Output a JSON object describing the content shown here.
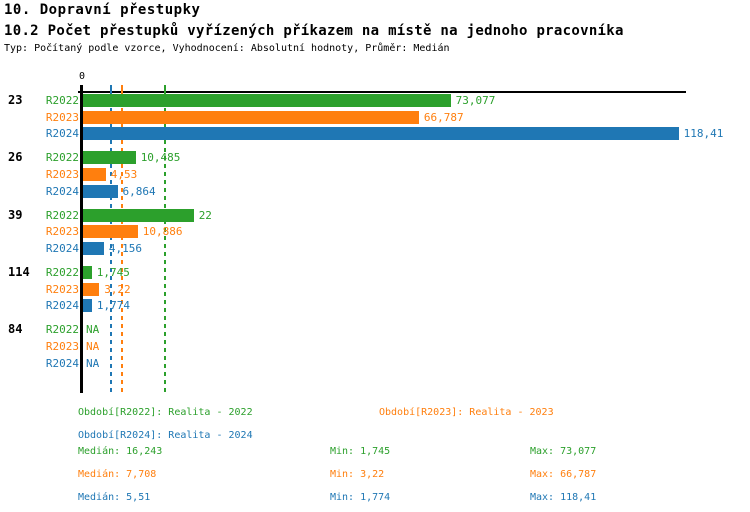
{
  "header": {
    "title1": "10. Dopravní přestupky",
    "title2": "10.2 Počet přestupků vyřízených příkazem na místě na jednoho pracovníka",
    "subtitle": "Typ: Počítaný podle vzorce, Vyhodnocení: Absolutní hodnoty, Průměr: Medián"
  },
  "chart_data": {
    "type": "bar",
    "orientation": "horizontal",
    "title": "10.2 Počet přestupků vyřízených příkazem na místě na jednoho pracovníka",
    "axis_tick_label": "0",
    "xlim": [
      0,
      120
    ],
    "grid": "median-lines-dashed",
    "categories": [
      "23",
      "26",
      "39",
      "114",
      "84"
    ],
    "series_labels": [
      "R2022",
      "R2023",
      "R2024"
    ],
    "series_colors": [
      "#2ca02c",
      "#ff7f0e",
      "#1f77b4"
    ],
    "groups": [
      {
        "category": "23",
        "bars": [
          {
            "series": "R2022",
            "value": 73.077,
            "display": "73,077"
          },
          {
            "series": "R2023",
            "value": 66.787,
            "display": "66,787"
          },
          {
            "series": "R2024",
            "value": 118.41,
            "display": "118,41"
          }
        ]
      },
      {
        "category": "26",
        "bars": [
          {
            "series": "R2022",
            "value": 10.485,
            "display": "10,485"
          },
          {
            "series": "R2023",
            "value": 4.53,
            "display": "4,53"
          },
          {
            "series": "R2024",
            "value": 6.864,
            "display": "6,864"
          }
        ]
      },
      {
        "category": "39",
        "bars": [
          {
            "series": "R2022",
            "value": 22,
            "display": "22"
          },
          {
            "series": "R2023",
            "value": 10.886,
            "display": "10,886"
          },
          {
            "series": "R2024",
            "value": 4.156,
            "display": "4,156"
          }
        ]
      },
      {
        "category": "114",
        "bars": [
          {
            "series": "R2022",
            "value": 1.745,
            "display": "1,745"
          },
          {
            "series": "R2023",
            "value": 3.22,
            "display": "3,22"
          },
          {
            "series": "R2024",
            "value": 1.774,
            "display": "1,774"
          }
        ]
      },
      {
        "category": "84",
        "bars": [
          {
            "series": "R2022",
            "value": null,
            "display": "NA"
          },
          {
            "series": "R2023",
            "value": null,
            "display": "NA"
          },
          {
            "series": "R2024",
            "value": null,
            "display": "NA"
          }
        ]
      }
    ],
    "median_lines": [
      {
        "series": "R2022",
        "value": 16.243
      },
      {
        "series": "R2023",
        "value": 7.708
      },
      {
        "series": "R2024",
        "value": 5.51
      }
    ]
  },
  "legend": {
    "items": [
      {
        "series": "R2022",
        "label": "Období[R2022]: Realita - 2022"
      },
      {
        "series": "R2023",
        "label": "Období[R2023]: Realita - 2023"
      },
      {
        "series": "R2024",
        "label": "Období[R2024]: Realita - 2024"
      }
    ]
  },
  "stats": {
    "rows": [
      {
        "series": "R2022",
        "median": "Medián: 16,243",
        "min": "Min: 1,745",
        "max": "Max: 73,077"
      },
      {
        "series": "R2023",
        "median": "Medián: 7,708",
        "min": "Min: 3,22",
        "max": "Max: 66,787"
      },
      {
        "series": "R2024",
        "median": "Medián: 5,51",
        "min": "Min: 1,774",
        "max": "Max: 118,41"
      }
    ]
  }
}
